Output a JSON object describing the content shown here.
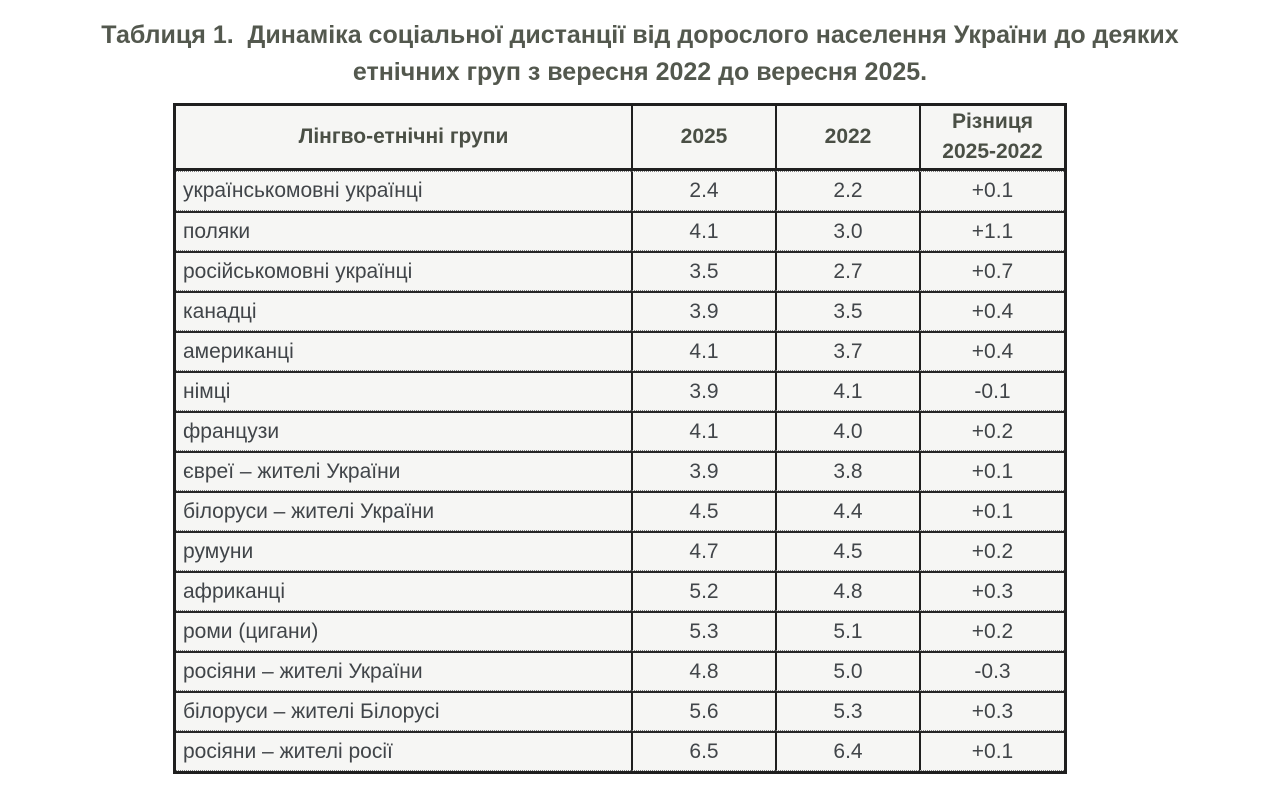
{
  "title": {
    "text": "Таблиця 1.  Динаміка соціальної дистанції від дорослого населення України до деяких\nетнічних груп з вересня 2022 до вересня 2025."
  },
  "table": {
    "columns": [
      "Лінгво-етнічні групи",
      "2025",
      "2022",
      "Різниця\n2025-2022"
    ],
    "rows": [
      [
        "українськомовні українці",
        "2.4",
        "2.2",
        "+0.1"
      ],
      [
        "поляки",
        "4.1",
        "3.0",
        "+1.1"
      ],
      [
        "російськомовні українці",
        "3.5",
        "2.7",
        "+0.7"
      ],
      [
        "канадці",
        "3.9",
        "3.5",
        "+0.4"
      ],
      [
        "американці",
        "4.1",
        "3.7",
        "+0.4"
      ],
      [
        "німці",
        "3.9",
        "4.1",
        "-0.1"
      ],
      [
        "французи",
        "4.1",
        "4.0",
        "+0.2"
      ],
      [
        "євреї – жителі України",
        "3.9",
        "3.8",
        "+0.1"
      ],
      [
        "білоруси – жителі України",
        "4.5",
        "4.4",
        "+0.1"
      ],
      [
        "румуни",
        "4.7",
        "4.5",
        "+0.2"
      ],
      [
        "африканці",
        "5.2",
        "4.8",
        "+0.3"
      ],
      [
        "роми (цигани)",
        "5.3",
        "5.1",
        "+0.2"
      ],
      [
        "росіяни – жителі України",
        "4.8",
        "5.0",
        "-0.3"
      ],
      [
        "білоруси – жителі Білорусі",
        "5.6",
        "5.3",
        "+0.3"
      ],
      [
        "росіяни – жителі росії",
        "6.5",
        "6.4",
        "+0.1"
      ]
    ]
  },
  "chart_data": {
    "type": "table",
    "title": "Таблиця 1. Динаміка соціальної дистанції від дорослого населення України до деяких етнічних груп з вересня 2022 до вересня 2025.",
    "categories": [
      "українськомовні українці",
      "поляки",
      "російськомовні українці",
      "канадці",
      "американці",
      "німці",
      "французи",
      "євреї – жителі України",
      "білоруси – жителі України",
      "румуни",
      "африканці",
      "роми (цигани)",
      "росіяни – жителі України",
      "білоруси – жителі Білорусі",
      "росіяни – жителі росії"
    ],
    "series": [
      {
        "name": "2025",
        "values": [
          2.4,
          4.1,
          3.5,
          3.9,
          4.1,
          3.9,
          4.1,
          3.9,
          4.5,
          4.7,
          5.2,
          5.3,
          4.8,
          5.6,
          6.5
        ]
      },
      {
        "name": "2022",
        "values": [
          2.2,
          3.0,
          2.7,
          3.5,
          3.7,
          4.1,
          4.0,
          3.8,
          4.4,
          4.5,
          4.8,
          5.1,
          5.0,
          5.3,
          6.4
        ]
      },
      {
        "name": "Різниця 2025-2022",
        "values": [
          "+0.1",
          "+1.1",
          "+0.7",
          "+0.4",
          "+0.4",
          "-0.1",
          "+0.2",
          "+0.1",
          "+0.1",
          "+0.2",
          "+0.3",
          "+0.2",
          "-0.3",
          "+0.3",
          "+0.1"
        ]
      }
    ]
  },
  "colors": {
    "title_text": "#53584e",
    "header_text": "#4a4f45",
    "body_text": "#414549",
    "solid_border": "#1f1f1f",
    "dotted_border": "#7d7d7d",
    "cell_background": "#f6f6f4",
    "page_background": "#ffffff"
  }
}
